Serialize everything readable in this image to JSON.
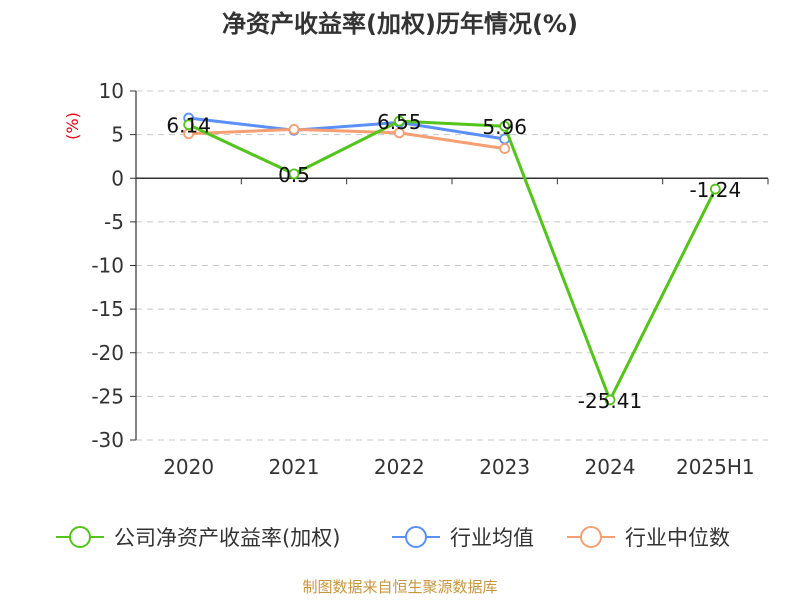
{
  "chart_data": {
    "type": "line",
    "title": "净资产收益率(加权)历年情况(%)",
    "ylabel": "(%)",
    "xlabel": "",
    "categories": [
      "2020",
      "2021",
      "2022",
      "2023",
      "2024",
      "2025H1"
    ],
    "ylim": [
      -30,
      10
    ],
    "yticks": [
      10,
      5,
      0,
      -5,
      -10,
      -15,
      -20,
      -25,
      -30
    ],
    "grid": true,
    "legend_position": "bottom",
    "series": [
      {
        "name": "公司净资产收益率(加权)",
        "color": "#52c41a",
        "values": [
          6.14,
          0.5,
          6.55,
          5.96,
          -25.41,
          -1.24
        ],
        "data_labels": [
          "6.14",
          "0.5",
          "6.55",
          "5.96",
          "-25.41",
          "-1.24"
        ]
      },
      {
        "name": "行业均值",
        "color": "#5b8ff9",
        "values": [
          6.9,
          5.5,
          6.4,
          4.5,
          null,
          null
        ]
      },
      {
        "name": "行业中位数",
        "color": "#f59f72",
        "values": [
          5.1,
          5.6,
          5.2,
          3.4,
          null,
          null
        ]
      }
    ]
  },
  "source_text": "制图数据来自恒生聚源数据库"
}
